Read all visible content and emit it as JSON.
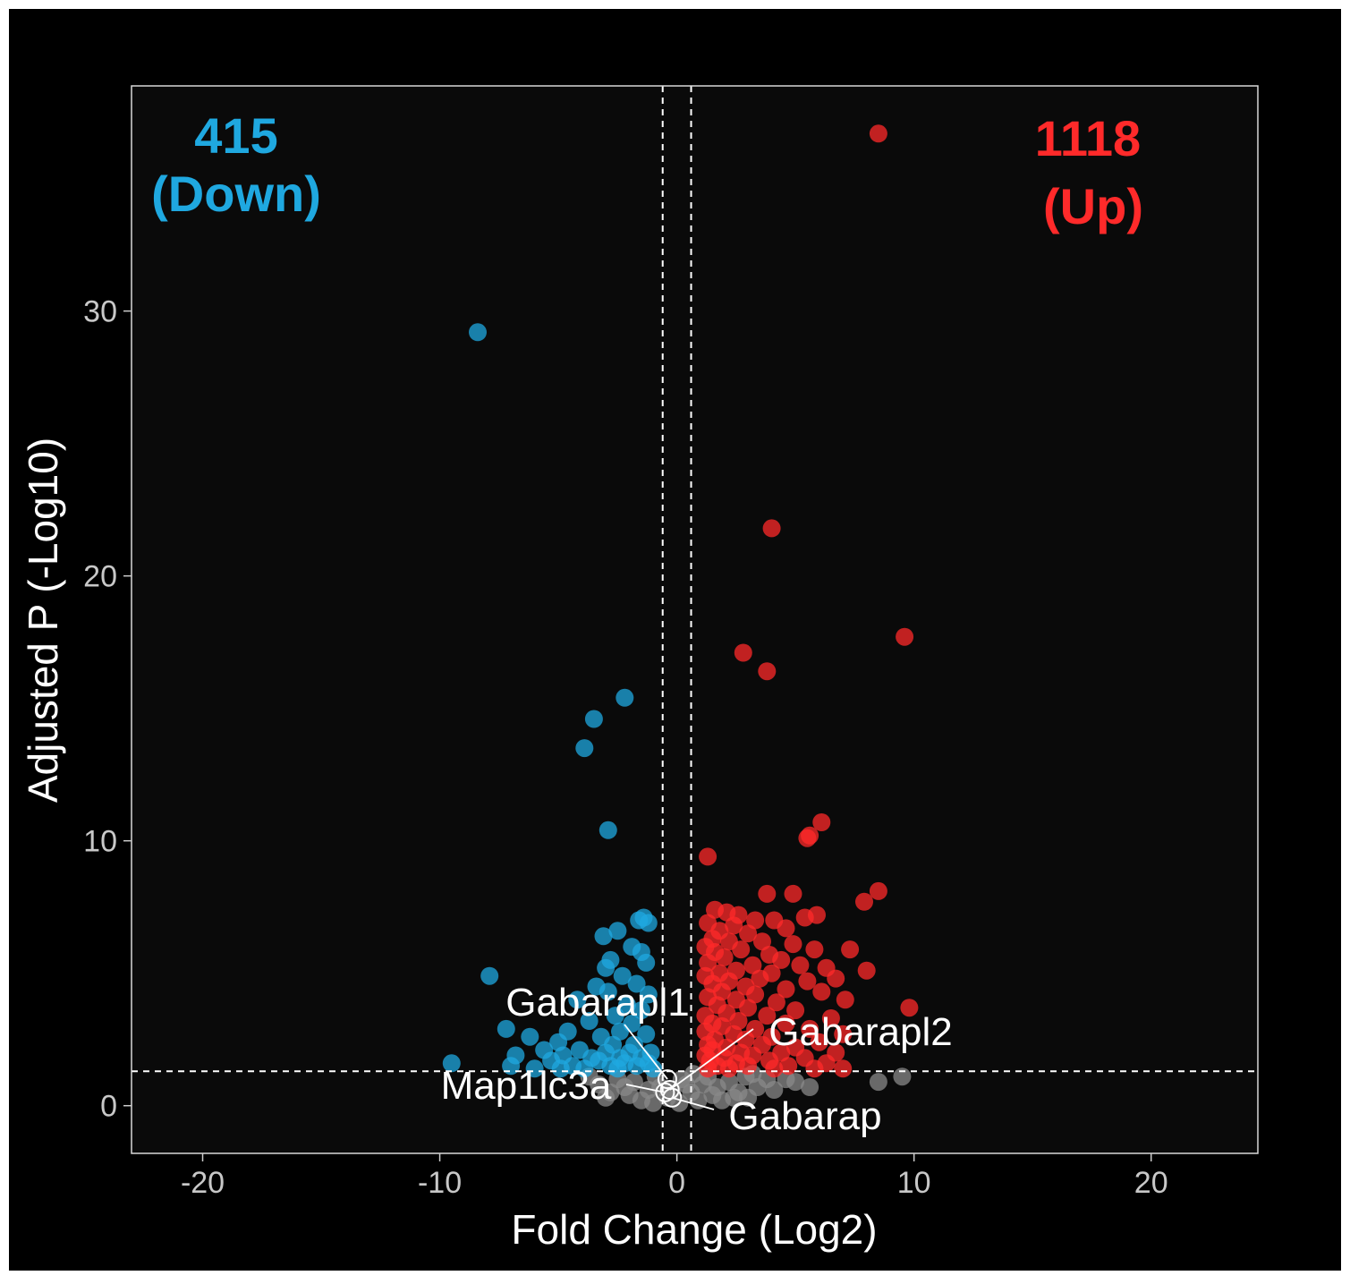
{
  "chart_data": {
    "type": "scatter",
    "title": "",
    "xlabel": "Fold Change (Log2)",
    "ylabel": "Adjusted P (-Log10)",
    "xlim": [
      -23,
      24.5
    ],
    "ylim": [
      -1.8,
      38.5
    ],
    "x_ticks": [
      -20,
      -10,
      0,
      10,
      20
    ],
    "y_ticks": [
      0,
      10,
      20,
      30
    ],
    "x_tick_labels": [
      "-20",
      "-10",
      "0",
      "10",
      "20"
    ],
    "y_tick_labels": [
      "0",
      "10",
      "20",
      "30"
    ],
    "thresholds": {
      "fold_change": [
        -0.6,
        0.6
      ],
      "adjusted_p": 1.3
    },
    "colors": {
      "background": "#000000",
      "panel": "#0a0a0a",
      "down": "#1fa8e0",
      "up": "#ff2a2a",
      "ns": "#8a8a8a",
      "grid_line": "#ffffff"
    },
    "counts": {
      "down": {
        "value": "415",
        "label": "(Down)"
      },
      "up": {
        "value": "1118",
        "label": "(Up)"
      }
    },
    "series": [
      {
        "name": "Down",
        "color": "#1fa8e0",
        "points": [
          [
            -8.4,
            29.2
          ],
          [
            -2.2,
            15.4
          ],
          [
            -3.5,
            14.6
          ],
          [
            -3.9,
            13.5
          ],
          [
            -2.9,
            10.4
          ],
          [
            -1.4,
            7.1
          ],
          [
            -1.6,
            7.0
          ],
          [
            -1.2,
            6.9
          ],
          [
            -2.5,
            6.6
          ],
          [
            -3.1,
            6.4
          ],
          [
            -1.9,
            6.0
          ],
          [
            -1.5,
            5.8
          ],
          [
            -2.8,
            5.5
          ],
          [
            -1.3,
            5.4
          ],
          [
            -3.0,
            5.2
          ],
          [
            -7.9,
            4.9
          ],
          [
            -2.3,
            4.9
          ],
          [
            -1.7,
            4.6
          ],
          [
            -3.4,
            4.5
          ],
          [
            -2.9,
            4.3
          ],
          [
            -1.2,
            4.2
          ],
          [
            -4.2,
            4.0
          ],
          [
            -2.1,
            3.8
          ],
          [
            -1.5,
            3.6
          ],
          [
            -2.6,
            3.4
          ],
          [
            -3.7,
            3.2
          ],
          [
            -1.9,
            3.1
          ],
          [
            -7.2,
            2.9
          ],
          [
            -4.6,
            2.8
          ],
          [
            -2.4,
            2.8
          ],
          [
            -1.3,
            2.7
          ],
          [
            -6.2,
            2.6
          ],
          [
            -3.2,
            2.6
          ],
          [
            -5.0,
            2.4
          ],
          [
            -2.7,
            2.3
          ],
          [
            -1.8,
            2.3
          ],
          [
            -5.6,
            2.1
          ],
          [
            -4.1,
            2.1
          ],
          [
            -3.0,
            2.0
          ],
          [
            -2.0,
            2.0
          ],
          [
            -1.1,
            2.0
          ],
          [
            -6.8,
            1.9
          ],
          [
            -4.8,
            1.9
          ],
          [
            -3.6,
            1.8
          ],
          [
            -2.4,
            1.8
          ],
          [
            -1.5,
            1.8
          ],
          [
            -5.3,
            1.7
          ],
          [
            -3.3,
            1.7
          ],
          [
            -2.2,
            1.6
          ],
          [
            -1.2,
            1.6
          ],
          [
            -9.5,
            1.6
          ],
          [
            -7.0,
            1.5
          ],
          [
            -4.4,
            1.5
          ],
          [
            -2.8,
            1.5
          ],
          [
            -1.7,
            1.5
          ],
          [
            -6.0,
            1.4
          ],
          [
            -3.9,
            1.4
          ],
          [
            -2.5,
            1.4
          ],
          [
            -1.0,
            1.4
          ],
          [
            -4.9,
            1.4
          ]
        ]
      },
      {
        "name": "Up",
        "color": "#ff2a2a",
        "points": [
          [
            8.5,
            36.7
          ],
          [
            4.0,
            21.8
          ],
          [
            9.6,
            17.7
          ],
          [
            2.8,
            17.1
          ],
          [
            3.8,
            16.4
          ],
          [
            6.1,
            10.7
          ],
          [
            5.6,
            10.2
          ],
          [
            5.5,
            10.1
          ],
          [
            1.3,
            9.4
          ],
          [
            8.5,
            8.1
          ],
          [
            3.8,
            8.0
          ],
          [
            4.9,
            8.0
          ],
          [
            7.9,
            7.7
          ],
          [
            1.6,
            7.4
          ],
          [
            2.1,
            7.3
          ],
          [
            2.6,
            7.2
          ],
          [
            5.9,
            7.2
          ],
          [
            5.4,
            7.1
          ],
          [
            3.3,
            7.0
          ],
          [
            4.1,
            7.0
          ],
          [
            1.3,
            6.9
          ],
          [
            2.4,
            6.8
          ],
          [
            4.6,
            6.7
          ],
          [
            1.8,
            6.6
          ],
          [
            3.0,
            6.5
          ],
          [
            1.5,
            6.3
          ],
          [
            2.2,
            6.2
          ],
          [
            3.6,
            6.2
          ],
          [
            4.9,
            6.1
          ],
          [
            1.2,
            6.0
          ],
          [
            2.7,
            5.9
          ],
          [
            7.3,
            5.9
          ],
          [
            5.8,
            5.9
          ],
          [
            1.6,
            5.8
          ],
          [
            3.9,
            5.7
          ],
          [
            2.0,
            5.6
          ],
          [
            4.4,
            5.5
          ],
          [
            1.3,
            5.4
          ],
          [
            3.2,
            5.3
          ],
          [
            5.2,
            5.3
          ],
          [
            6.3,
            5.2
          ],
          [
            2.5,
            5.1
          ],
          [
            8.0,
            5.1
          ],
          [
            1.8,
            5.0
          ],
          [
            4.0,
            5.0
          ],
          [
            1.2,
            4.9
          ],
          [
            3.5,
            4.8
          ],
          [
            6.7,
            4.8
          ],
          [
            2.2,
            4.7
          ],
          [
            5.5,
            4.7
          ],
          [
            1.5,
            4.6
          ],
          [
            2.9,
            4.5
          ],
          [
            4.6,
            4.4
          ],
          [
            1.9,
            4.3
          ],
          [
            6.1,
            4.3
          ],
          [
            3.3,
            4.2
          ],
          [
            1.3,
            4.1
          ],
          [
            2.5,
            4.0
          ],
          [
            7.1,
            4.0
          ],
          [
            4.2,
            3.9
          ],
          [
            1.7,
            3.8
          ],
          [
            9.8,
            3.7
          ],
          [
            3.0,
            3.7
          ],
          [
            5.0,
            3.6
          ],
          [
            2.1,
            3.5
          ],
          [
            1.2,
            3.4
          ],
          [
            3.8,
            3.4
          ],
          [
            6.5,
            3.3
          ],
          [
            2.6,
            3.2
          ],
          [
            1.5,
            3.1
          ],
          [
            4.6,
            3.1
          ],
          [
            1.9,
            3.0
          ],
          [
            3.3,
            2.9
          ],
          [
            5.6,
            2.9
          ],
          [
            1.2,
            2.8
          ],
          [
            2.4,
            2.7
          ],
          [
            7.0,
            2.7
          ],
          [
            4.0,
            2.6
          ],
          [
            1.6,
            2.5
          ],
          [
            2.9,
            2.5
          ],
          [
            6.0,
            2.4
          ],
          [
            1.3,
            2.3
          ],
          [
            3.6,
            2.3
          ],
          [
            2.1,
            2.2
          ],
          [
            5.0,
            2.2
          ],
          [
            1.5,
            2.1
          ],
          [
            2.7,
            2.0
          ],
          [
            4.4,
            2.0
          ],
          [
            6.7,
            2.0
          ],
          [
            1.2,
            1.9
          ],
          [
            3.2,
            1.9
          ],
          [
            2.0,
            1.8
          ],
          [
            5.4,
            1.8
          ],
          [
            1.4,
            1.7
          ],
          [
            3.9,
            1.7
          ],
          [
            2.5,
            1.6
          ],
          [
            6.3,
            1.6
          ],
          [
            1.7,
            1.5
          ],
          [
            4.7,
            1.5
          ],
          [
            3.0,
            1.5
          ],
          [
            7.0,
            1.4
          ],
          [
            1.3,
            1.4
          ],
          [
            2.2,
            1.4
          ],
          [
            5.8,
            1.4
          ],
          [
            4.1,
            1.4
          ]
        ]
      },
      {
        "name": "NS",
        "color": "#8a8a8a",
        "points": [
          [
            8.5,
            0.9
          ],
          [
            9.5,
            1.1
          ],
          [
            5.6,
            0.7
          ],
          [
            -2.8,
            0.5
          ],
          [
            -1.8,
            0.9
          ],
          [
            -0.9,
            1.1
          ],
          [
            0.2,
            1.0
          ],
          [
            1.1,
            0.8
          ],
          [
            2.2,
            0.9
          ],
          [
            3.4,
            0.7
          ],
          [
            -2.0,
            0.4
          ],
          [
            -1.2,
            0.6
          ],
          [
            -0.4,
            0.3
          ],
          [
            0.6,
            0.5
          ],
          [
            1.5,
            0.4
          ],
          [
            2.6,
            0.5
          ],
          [
            4.1,
            0.6
          ],
          [
            -3.3,
            0.8
          ],
          [
            -1.5,
            0.2
          ],
          [
            0.9,
            0.2
          ],
          [
            1.9,
            0.2
          ],
          [
            3.0,
            0.3
          ],
          [
            4.6,
            1.0
          ],
          [
            -2.5,
            1.0
          ],
          [
            -0.7,
            0.7
          ],
          [
            0.4,
            0.8
          ],
          [
            1.3,
            1.1
          ],
          [
            2.9,
            1.1
          ],
          [
            3.8,
            1.0
          ],
          [
            5.0,
            0.9
          ],
          [
            -3.7,
            1.1
          ],
          [
            -1.0,
            0.1
          ],
          [
            0.1,
            0.1
          ],
          [
            1.7,
            0.7
          ],
          [
            2.4,
            0.3
          ],
          [
            -2.2,
            0.7
          ],
          [
            -0.2,
            0.6
          ],
          [
            0.7,
            1.2
          ],
          [
            3.2,
            1.2
          ],
          [
            -3.0,
            0.3
          ]
        ]
      }
    ],
    "highlighted_genes": [
      {
        "name": "Gabarapl1",
        "x": -0.4,
        "y": 1.0
      },
      {
        "name": "Gabarapl2",
        "x": -0.3,
        "y": 0.6
      },
      {
        "name": "Map1lc3a",
        "x": -0.5,
        "y": 0.5
      },
      {
        "name": "Gabarap",
        "x": -0.2,
        "y": 0.3
      }
    ]
  }
}
